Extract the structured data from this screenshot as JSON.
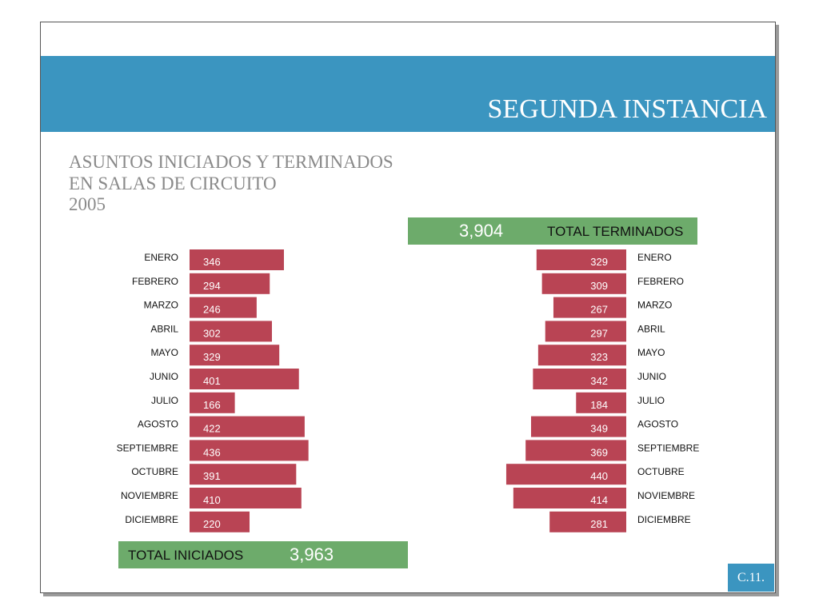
{
  "header": {
    "title": "SEGUNDA INSTANCIA"
  },
  "subtitle": {
    "line1": "ASUNTOS INICIADOS Y TERMINADOS",
    "line2": "EN SALAS DE CIRCUITO",
    "line3": "2005"
  },
  "totals": {
    "terminados_value": "3,904",
    "terminados_label": "TOTAL TERMINADOS",
    "iniciados_label": "TOTAL INICIADOS",
    "iniciados_value": "3,963"
  },
  "page_number": "C.11.",
  "colors": {
    "banner": "#3b95c0",
    "bar": "#b94454",
    "total_box": "#6dab6b",
    "subtitle_text": "#8a8a8a"
  },
  "chart_data": [
    {
      "type": "bar",
      "orientation": "horizontal",
      "direction": "left-to-right",
      "categories": [
        "ENERO",
        "FEBRERO",
        "MARZO",
        "ABRIL",
        "MAYO",
        "JUNIO",
        "JULIO",
        "AGOSTO",
        "SEPTIEMBRE",
        "OCTUBRE",
        "NOVIEMBRE",
        "DICIEMBRE"
      ],
      "values": [
        346,
        294,
        246,
        302,
        329,
        401,
        166,
        422,
        436,
        391,
        410,
        220
      ],
      "total_label": "TOTAL INICIADOS",
      "total": "3,963"
    },
    {
      "type": "bar",
      "orientation": "horizontal",
      "direction": "right-to-left",
      "categories": [
        "ENERO",
        "FEBRERO",
        "MARZO",
        "ABRIL",
        "MAYO",
        "JUNIO",
        "JULIO",
        "AGOSTO",
        "SEPTIEMBRE",
        "OCTUBRE",
        "NOVIEMBRE",
        "DICIEMBRE"
      ],
      "values": [
        329,
        309,
        267,
        297,
        323,
        342,
        184,
        349,
        369,
        440,
        414,
        281
      ],
      "total_label": "TOTAL TERMINADOS",
      "total": "3,904"
    }
  ]
}
